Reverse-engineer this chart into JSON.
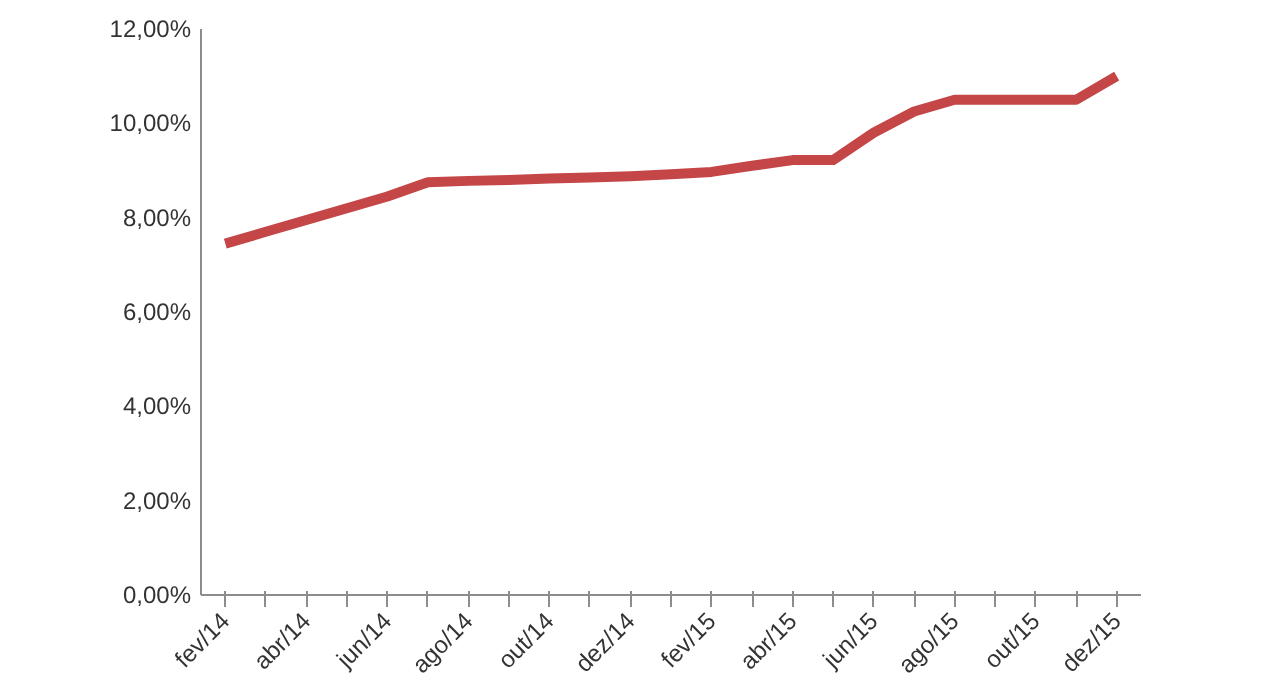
{
  "chart_data": {
    "type": "line",
    "categories": [
      "fev/14",
      null,
      "abr/14",
      null,
      "jun/14",
      null,
      "ago/14",
      null,
      "out/14",
      null,
      "dez/14",
      null,
      "fev/15",
      null,
      "abr/15",
      null,
      "jun/15",
      null,
      "ago/15",
      null,
      "out/15",
      null,
      "dez/15"
    ],
    "series": [
      {
        "color": "#c44646",
        "values": [
          7.45,
          7.7,
          7.95,
          8.2,
          8.45,
          8.75,
          8.78,
          8.8,
          8.83,
          8.85,
          8.88,
          8.92,
          8.97,
          9.1,
          9.22,
          9.22,
          9.8,
          10.25,
          10.5,
          10.5,
          10.5,
          10.5,
          11.0
        ]
      }
    ],
    "ylim": [
      0,
      12
    ],
    "yticks": [
      {
        "value": 0,
        "label": "0,00%"
      },
      {
        "value": 2,
        "label": "2,00%"
      },
      {
        "value": 4,
        "label": "4,00%"
      },
      {
        "value": 6,
        "label": "6,00%"
      },
      {
        "value": 8,
        "label": "8,00%"
      },
      {
        "value": 10,
        "label": "10,00%"
      },
      {
        "value": 12,
        "label": "12,00%"
      }
    ],
    "grid": false,
    "marker": "none",
    "line_style": "solid"
  }
}
